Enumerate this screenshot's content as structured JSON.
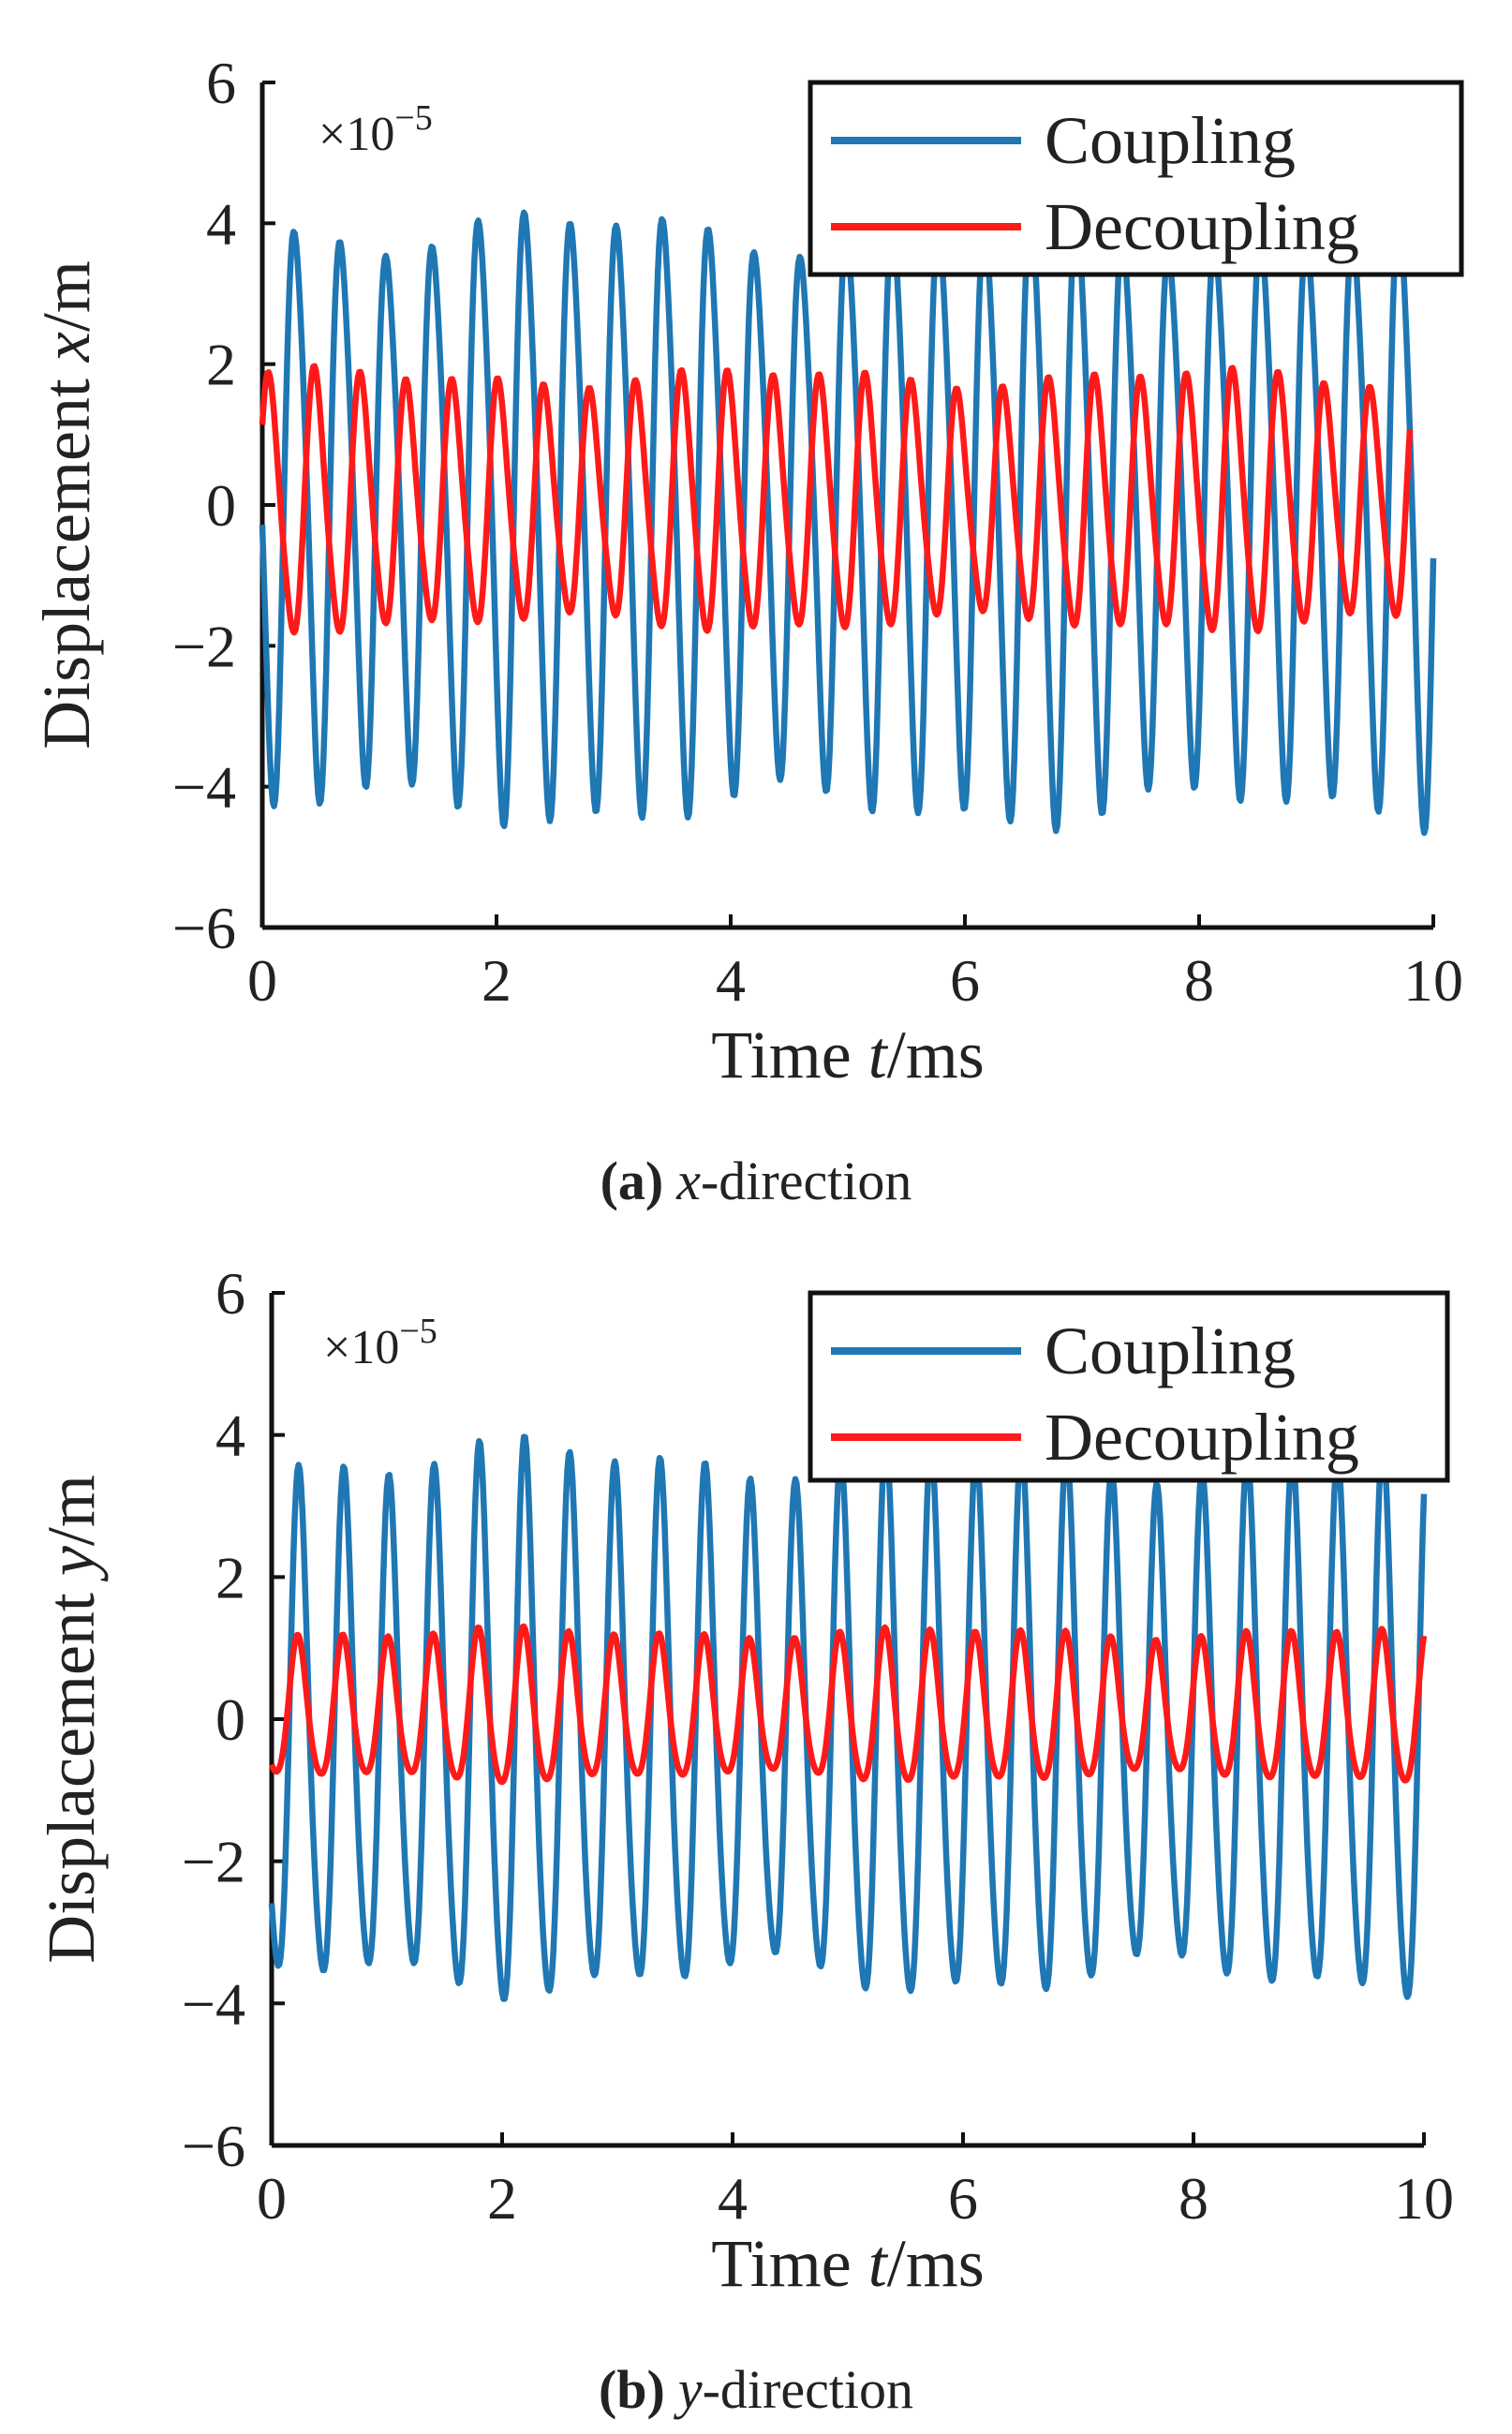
{
  "colors": {
    "coupling": "#1f77b4",
    "decoupling": "#ff1a1a"
  },
  "chart_data": [
    {
      "type": "line",
      "panel": "a",
      "caption": {
        "label": "(a)",
        "axis": "x",
        "text": "-direction"
      },
      "xlabel": {
        "pre": "Time ",
        "var": "t",
        "post": "/ms"
      },
      "ylabel": {
        "pre": "Displacement ",
        "var": "x",
        "post": "/m"
      },
      "ymultiplier": "×10",
      "yexponent": "−5",
      "xlim": [
        0,
        10
      ],
      "ylim": [
        -6,
        6
      ],
      "xticks": [
        "0",
        "2",
        "4",
        "6",
        "8",
        "10"
      ],
      "yticks": [
        "−6",
        "−4",
        "−2",
        "0",
        "2",
        "4",
        "6"
      ],
      "legend_position": "top-right",
      "series": [
        {
          "name": "Coupling",
          "color": "#1f77b4",
          "amplitude": 4.0,
          "period_ms": 0.393,
          "phase": 3.3,
          "offset": 0.0,
          "x_range": [
            0,
            10
          ],
          "description_values": {
            "max": 4.3,
            "min": -4.2
          }
        },
        {
          "name": "Decoupling",
          "color": "#ff1a1a",
          "amplitude": 1.7,
          "period_ms": 0.392,
          "phase": 0.6,
          "offset": 0.0,
          "x_range": [
            0,
            9.8
          ],
          "description_values": {
            "max": 2.2,
            "min": -2.2
          }
        }
      ]
    },
    {
      "type": "line",
      "panel": "b",
      "caption": {
        "label": "(b)",
        "axis": "y",
        "text": "-direction"
      },
      "xlabel": {
        "pre": "Time ",
        "var": "t",
        "post": "/ms"
      },
      "ylabel": {
        "pre": "Displacement ",
        "var": "y",
        "post": "/m"
      },
      "ymultiplier": "×10",
      "yexponent": "−5",
      "xlim": [
        0,
        10
      ],
      "ylim": [
        -6,
        6
      ],
      "xticks": [
        "0",
        "2",
        "4",
        "6",
        "8",
        "10"
      ],
      "yticks": [
        "−6",
        "−4",
        "−2",
        "0",
        "2",
        "4",
        "6"
      ],
      "legend_position": "top-right",
      "series": [
        {
          "name": "Coupling",
          "color": "#1f77b4",
          "amplitude": 3.6,
          "period_ms": 0.392,
          "phase": 4.0,
          "offset": -0.3,
          "x_range": [
            0,
            10
          ],
          "description_values": {
            "max": 4.5,
            "min": -4.2
          }
        },
        {
          "name": "Decoupling",
          "color": "#ff1a1a",
          "amplitude": 1.0,
          "period_ms": 0.392,
          "phase": 4.2,
          "offset": 0.1,
          "x_range": [
            0,
            10
          ],
          "description_values": {
            "max": 1.2,
            "min": -1.2
          }
        }
      ]
    }
  ]
}
